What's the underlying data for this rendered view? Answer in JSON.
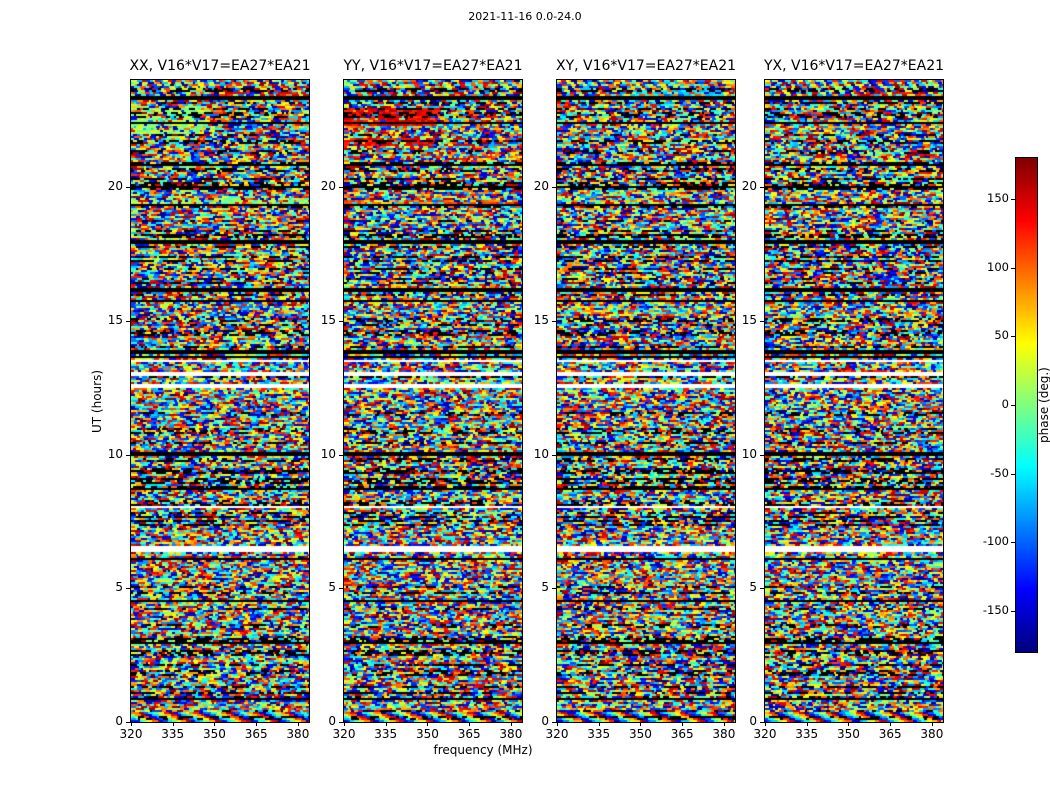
{
  "chart_data": {
    "type": "heatmap",
    "figure_title": "2021-11-16 0.0-24.0",
    "xlabel": "frequency (MHz)",
    "ylabel": "UT (hours)",
    "x_range": [
      320,
      384
    ],
    "y_range": [
      0,
      24
    ],
    "x_ticks": [
      320,
      335,
      350,
      365,
      380
    ],
    "y_ticks": [
      0,
      5,
      10,
      15,
      20
    ],
    "baseline": "V16*V17=EA27*EA21",
    "panels": [
      {
        "pol": "XX",
        "title": "XX, V16*V17=EA27*EA21"
      },
      {
        "pol": "YY",
        "title": "YY, V16*V17=EA27*EA21"
      },
      {
        "pol": "XY",
        "title": "XY, V16*V17=EA27*EA21"
      },
      {
        "pol": "YX",
        "title": "YX, V16*V17=EA27*EA21"
      }
    ],
    "colorbar": {
      "label": "phase (deg.)",
      "ticks": [
        150,
        100,
        50,
        0,
        -50,
        -100,
        -150
      ],
      "min": -180,
      "max": 180,
      "colormap": "jet"
    },
    "content": "wrapped interferometric phase noise vs UT and frequency; horizontal dark RFI/flag stripes and blank (flagged) time gaps shared by all four polarization panels",
    "white_gaps": [
      {
        "ut": 6.45,
        "h": 0.12
      },
      {
        "ut": 8.02,
        "h": 0.05
      },
      {
        "ut": 12.55,
        "h": 0.05
      },
      {
        "ut": 13.02,
        "h": 0.06
      },
      {
        "ut": 13.5,
        "h": 0.04
      }
    ],
    "black_lines": [
      {
        "ut": 23.32,
        "h": 0.05
      },
      {
        "ut": 22.4,
        "h": 0.04
      },
      {
        "ut": 20.85,
        "h": 0.04
      },
      {
        "ut": 20.02,
        "h": 0.04
      },
      {
        "ut": 19.3,
        "h": 0.04
      },
      {
        "ut": 17.95,
        "h": 0.04
      },
      {
        "ut": 16.15,
        "h": 0.08
      },
      {
        "ut": 15.72,
        "h": 0.05
      },
      {
        "ut": 13.85,
        "h": 0.06
      },
      {
        "ut": 13.62,
        "h": 0.04
      },
      {
        "ut": 10.02,
        "h": 0.04
      },
      {
        "ut": 8.72,
        "h": 0.05
      },
      {
        "ut": 6.08,
        "h": 0.05
      },
      {
        "ut": 4.55,
        "h": 0.04
      },
      {
        "ut": 2.95,
        "h": 0.04
      },
      {
        "ut": 0.85,
        "h": 0.04
      }
    ],
    "features": [
      {
        "panels": [
          0,
          1,
          2,
          3
        ],
        "type": "sweep",
        "ut": [
          0.0,
          0.38
        ],
        "freq": [
          320,
          384
        ],
        "cycles": 6,
        "jitter": 0.12
      },
      {
        "panels": [
          0,
          1,
          2,
          3
        ],
        "type": "sweep",
        "ut": [
          23.08,
          24.0
        ],
        "freq": [
          320,
          384
        ],
        "cycles": 16,
        "jitter": 0.5
      },
      {
        "panels": [
          0
        ],
        "type": "bias",
        "color": "green",
        "ut": [
          21.95,
          23.0
        ],
        "freq": [
          320,
          347
        ],
        "p": 0.55
      },
      {
        "panels": [
          0
        ],
        "type": "bias",
        "color": "red",
        "ut": [
          23.22,
          23.6
        ],
        "freq": [
          352,
          383
        ],
        "p": 0.5
      },
      {
        "panels": [
          0
        ],
        "type": "bias",
        "color": "green",
        "ut": [
          19.28,
          19.62
        ],
        "freq": [
          320,
          384
        ],
        "p": 0.45
      },
      {
        "panels": [
          1
        ],
        "type": "bias",
        "color": "red",
        "ut": [
          22.25,
          22.95
        ],
        "freq": [
          320,
          354
        ],
        "p": 0.85
      },
      {
        "panels": [
          1
        ],
        "type": "bias",
        "color": "red",
        "ut": [
          21.52,
          21.82
        ],
        "freq": [
          320,
          352
        ],
        "p": 0.65
      },
      {
        "panels": [
          1
        ],
        "type": "bias",
        "color": "orange",
        "ut": [
          19.28,
          19.5
        ],
        "freq": [
          320,
          384
        ],
        "p": 0.45
      },
      {
        "panels": [
          2
        ],
        "type": "bias",
        "color": "cyan",
        "ut": [
          23.28,
          23.65
        ],
        "freq": [
          348,
          380
        ],
        "p": 0.55
      },
      {
        "panels": [
          3
        ],
        "type": "bias",
        "color": "red",
        "ut": [
          23.28,
          23.55
        ],
        "freq": [
          350,
          380
        ],
        "p": 0.45
      }
    ]
  }
}
